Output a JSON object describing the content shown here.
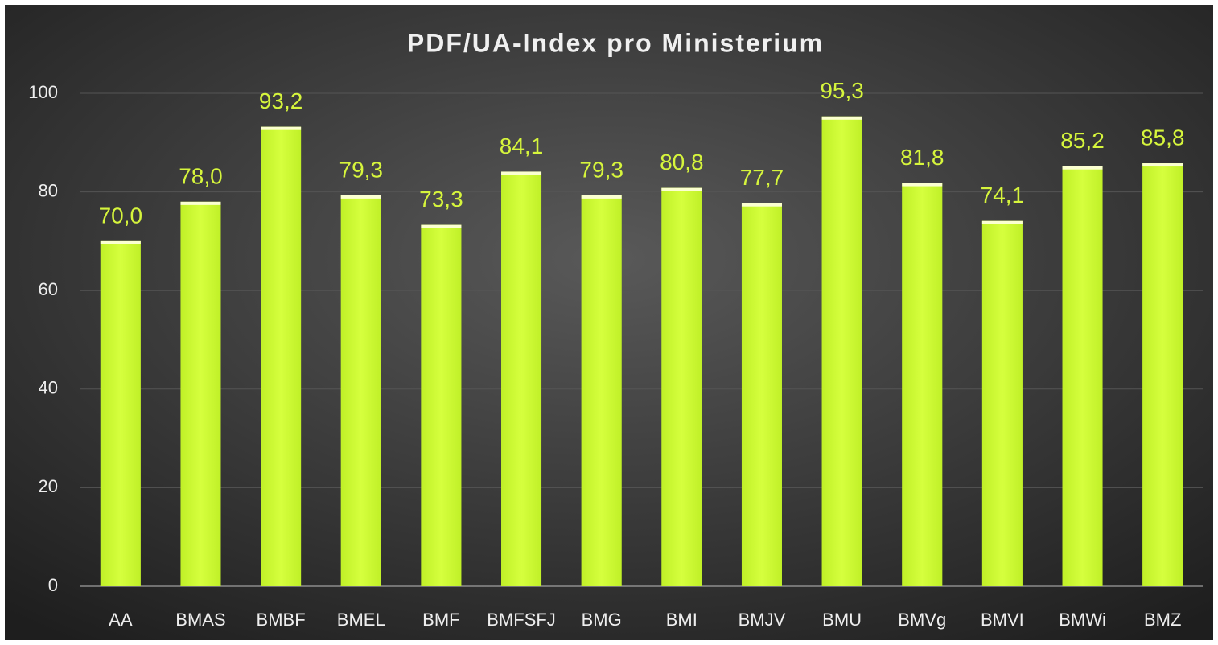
{
  "chart_data": {
    "type": "bar",
    "title": "PDF/UA-Index pro Ministerium",
    "categories": [
      "AA",
      "BMAS",
      "BMBF",
      "BMEL",
      "BMF",
      "BMFSFJ",
      "BMG",
      "BMI",
      "BMJV",
      "BMU",
      "BMVg",
      "BMVI",
      "BMWi",
      "BMZ"
    ],
    "values": [
      70.0,
      78.0,
      93.2,
      79.3,
      73.3,
      84.1,
      79.3,
      80.8,
      77.7,
      95.3,
      81.8,
      74.1,
      85.2,
      85.8
    ],
    "value_labels": [
      "70,0",
      "78,0",
      "93,2",
      "79,3",
      "73,3",
      "84,1",
      "79,3",
      "80,8",
      "77,7",
      "95,3",
      "81,8",
      "74,1",
      "85,2",
      "85,8"
    ],
    "color": "#ccff33",
    "ylim": [
      0,
      100
    ],
    "yticks": [
      0,
      20,
      40,
      60,
      80,
      100
    ],
    "grid": true
  }
}
